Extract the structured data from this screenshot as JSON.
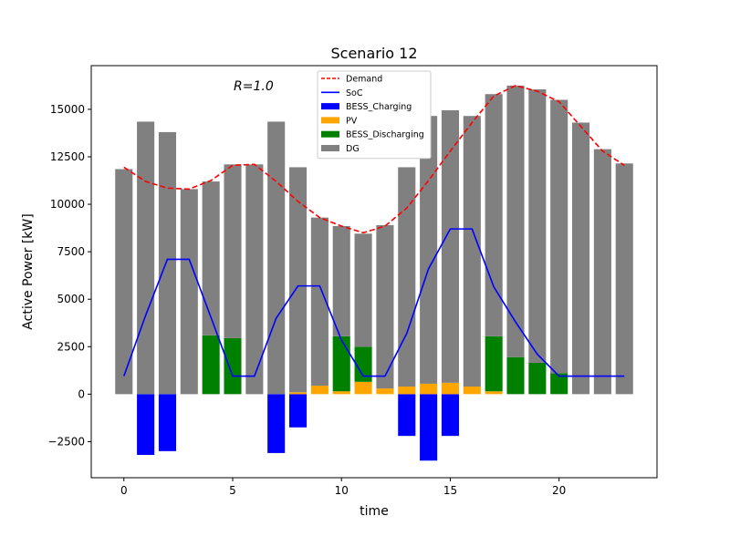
{
  "chart_data": {
    "type": "bar",
    "title": "Scenario 12",
    "xlabel": "time",
    "ylabel": "Active Power [kW]",
    "annotation": "R=1.0",
    "x": [
      0,
      1,
      2,
      3,
      4,
      5,
      6,
      7,
      8,
      9,
      10,
      11,
      12,
      13,
      14,
      15,
      16,
      17,
      18,
      19,
      20,
      21,
      22,
      23
    ],
    "xlim": [
      -1.5,
      24.5
    ],
    "ylim": [
      -4400,
      17300
    ],
    "xticks": [
      0,
      5,
      10,
      15,
      20
    ],
    "xtick_labels": [
      "0",
      "5",
      "10",
      "15",
      "20"
    ],
    "yticks": [
      -2500,
      0,
      2500,
      5000,
      7500,
      10000,
      12500,
      15000
    ],
    "ytick_labels": [
      "−2500",
      "0",
      "2500",
      "5000",
      "7500",
      "10000",
      "12500",
      "15000"
    ],
    "grid": false,
    "legend_position": "top-center",
    "legend": [
      {
        "label": "Demand",
        "kind": "dashed-line",
        "color": "#ff0000"
      },
      {
        "label": "SoC",
        "kind": "line",
        "color": "#0000ff"
      },
      {
        "label": "BESS_Charging",
        "kind": "patch",
        "color": "#0000ff"
      },
      {
        "label": "PV",
        "kind": "patch",
        "color": "#ffa500"
      },
      {
        "label": "BESS_Discharging",
        "kind": "patch",
        "color": "#008000"
      },
      {
        "label": "DG",
        "kind": "patch",
        "color": "#808080"
      }
    ],
    "series": [
      {
        "name": "BESS_Charging",
        "kind": "bar",
        "color": "#0000ff",
        "values": [
          0,
          -3200,
          -3000,
          0,
          0,
          0,
          0,
          -3100,
          -1750,
          0,
          0,
          0,
          0,
          -2200,
          -3500,
          -2200,
          0,
          0,
          0,
          0,
          0,
          0,
          0,
          0
        ]
      },
      {
        "name": "PV",
        "kind": "bar",
        "color": "#ffa500",
        "values": [
          0,
          0,
          0,
          0,
          0,
          0,
          0,
          0,
          100,
          450,
          150,
          650,
          300,
          400,
          550,
          600,
          400,
          150,
          0,
          0,
          0,
          0,
          0,
          0
        ]
      },
      {
        "name": "BESS_Discharging",
        "kind": "bar",
        "color": "#008000",
        "values": [
          0,
          0,
          0,
          0,
          3100,
          2950,
          0,
          0,
          0,
          0,
          2900,
          1850,
          0,
          0,
          0,
          0,
          0,
          2900,
          1950,
          1650,
          1100,
          0,
          0,
          0
        ]
      },
      {
        "name": "DG",
        "kind": "bar",
        "color": "#808080",
        "values": [
          11850,
          14350,
          13800,
          10800,
          8100,
          9150,
          12100,
          14350,
          11850,
          8850,
          5800,
          5950,
          8600,
          11550,
          14100,
          14350,
          14250,
          12750,
          14300,
          14400,
          14400,
          14300,
          12900,
          12150
        ]
      },
      {
        "name": "Demand",
        "kind": "dashed-line",
        "color": "#ff0000",
        "values": [
          11950,
          11200,
          10850,
          10800,
          11250,
          12050,
          12100,
          11200,
          10150,
          9300,
          8850,
          8500,
          8850,
          9800,
          11250,
          12800,
          14300,
          15700,
          16250,
          15950,
          15400,
          14100,
          12800,
          12050
        ]
      },
      {
        "name": "SoC",
        "kind": "line",
        "color": "#0000ff",
        "values": [
          950,
          4150,
          7100,
          7100,
          4050,
          950,
          950,
          4000,
          5700,
          5700,
          2850,
          950,
          950,
          3200,
          6600,
          8700,
          8700,
          5650,
          3800,
          2100,
          950,
          950,
          950,
          950
        ]
      }
    ]
  }
}
